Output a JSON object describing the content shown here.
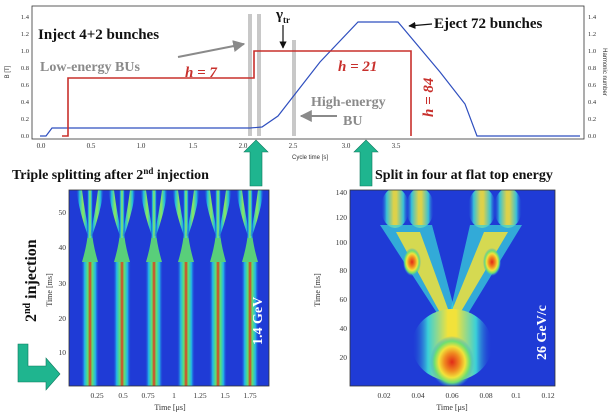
{
  "top": {
    "inject_label": "Inject 4+2 bunches",
    "eject_label": "Eject 72 bunches",
    "gamma": "γ",
    "gamma_sub": "tr",
    "low_bu_label": "Low-energy BUs",
    "high_bu_line1": "High-energy",
    "high_bu_line2": "BU",
    "h7_label": "h = 7",
    "h21_label": "h = 21",
    "h84_label": "h = 84",
    "y_left_label": "B [T]",
    "y_right_label": "Harmonic number",
    "x_label": "Cycle time [s]",
    "x_ticks": [
      "0.0",
      "0.5",
      "1.0",
      "1.5",
      "2.0",
      "2.5",
      "3.0",
      "3.5"
    ],
    "y_left_ticks": [
      "0.0",
      "0.2",
      "0.4",
      "0.6",
      "0.8",
      "1.0",
      "1.2",
      "1.4"
    ],
    "y_right_ticks": [
      "0.0",
      "0.2",
      "0.4",
      "0.6",
      "0.8",
      "1.0",
      "1.2",
      "1.4"
    ]
  },
  "left_panel": {
    "caption_pre": "Triple splitting after 2",
    "caption_sup": "nd",
    "caption_post": " injection",
    "side_label_main": "2",
    "side_label_sup": "nd",
    "side_label_post": " injection",
    "energy_label": "1.4 GeV",
    "y_label": "Time [ms]",
    "x_label": "Time [μs]",
    "y_ticks": [
      "10",
      "20",
      "30",
      "40",
      "50"
    ],
    "x_ticks": [
      "0.25",
      "0.5",
      "0.75",
      "1",
      "1.25",
      "1.5",
      "1.75"
    ]
  },
  "right_panel": {
    "caption": "Split in four at flat top energy",
    "energy_label": "26 GeV/c",
    "y_label": "Time [ms]",
    "x_label": "Time [μs]",
    "y_ticks": [
      "20",
      "40",
      "60",
      "80",
      "100",
      "120",
      "140"
    ],
    "x_ticks": [
      "0.02",
      "0.04",
      "0.06",
      "0.08",
      "0.1",
      "0.12"
    ]
  },
  "colors": {
    "field_curve": "#2f4fbf",
    "harmonic_curve": "#c8302c",
    "annotation_gray": "#8a8a8a",
    "arrow_green": "#1fb58f",
    "heatmap_bg": "#1f3bd6"
  }
}
